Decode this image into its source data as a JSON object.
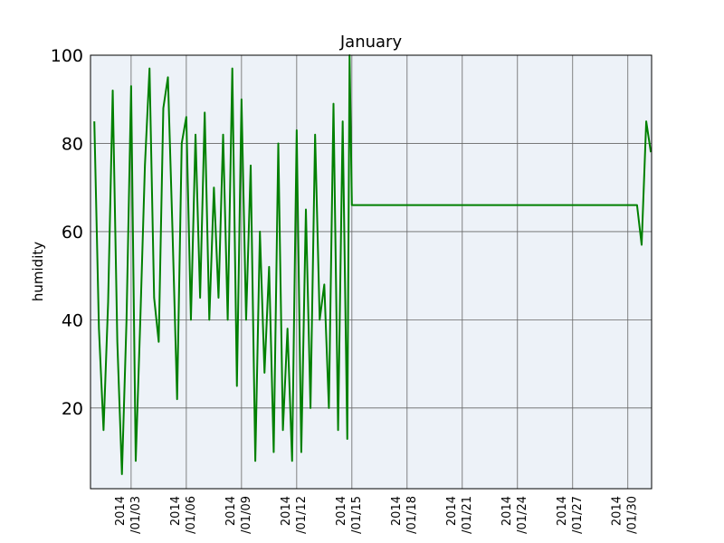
{
  "chart_data": {
    "type": "line",
    "title": "January",
    "y_label": "humidity",
    "x": [
      "2014-01-01T00:00",
      "2014-01-01T06:00",
      "2014-01-01T12:00",
      "2014-01-01T18:00",
      "2014-01-02T00:00",
      "2014-01-02T06:00",
      "2014-01-02T12:00",
      "2014-01-02T18:00",
      "2014-01-03T00:00",
      "2014-01-03T06:00",
      "2014-01-03T12:00",
      "2014-01-03T18:00",
      "2014-01-04T00:00",
      "2014-01-04T06:00",
      "2014-01-04T12:00",
      "2014-01-04T18:00",
      "2014-01-05T00:00",
      "2014-01-05T06:00",
      "2014-01-05T12:00",
      "2014-01-05T18:00",
      "2014-01-06T00:00",
      "2014-01-06T06:00",
      "2014-01-06T12:00",
      "2014-01-06T18:00",
      "2014-01-07T00:00",
      "2014-01-07T06:00",
      "2014-01-07T12:00",
      "2014-01-07T18:00",
      "2014-01-08T00:00",
      "2014-01-08T06:00",
      "2014-01-08T12:00",
      "2014-01-08T18:00",
      "2014-01-09T00:00",
      "2014-01-09T06:00",
      "2014-01-09T12:00",
      "2014-01-09T18:00",
      "2014-01-10T00:00",
      "2014-01-10T06:00",
      "2014-01-10T12:00",
      "2014-01-10T18:00",
      "2014-01-11T00:00",
      "2014-01-11T06:00",
      "2014-01-11T12:00",
      "2014-01-11T18:00",
      "2014-01-12T00:00",
      "2014-01-12T06:00",
      "2014-01-12T12:00",
      "2014-01-12T18:00",
      "2014-01-13T00:00",
      "2014-01-13T06:00",
      "2014-01-13T12:00",
      "2014-01-13T18:00",
      "2014-01-14T00:00",
      "2014-01-14T06:00",
      "2014-01-14T12:00",
      "2014-01-14T18:00",
      "2014-01-14T21:00",
      "2014-01-15T00:00",
      "2014-01-30T12:00",
      "2014-01-30T18:00",
      "2014-01-31T00:00",
      "2014-01-31T06:00"
    ],
    "series": [
      {
        "name": "humidity",
        "color": "#008000",
        "values": [
          85,
          38,
          15,
          44,
          92,
          35,
          5,
          40,
          93,
          8,
          40,
          75,
          97,
          45,
          35,
          88,
          95,
          60,
          22,
          80,
          86,
          40,
          82,
          45,
          87,
          40,
          70,
          45,
          82,
          40,
          97,
          25,
          90,
          40,
          75,
          8,
          60,
          28,
          52,
          10,
          80,
          15,
          38,
          8,
          83,
          10,
          65,
          20,
          82,
          40,
          48,
          20,
          89,
          15,
          85,
          13,
          100,
          66,
          66,
          57,
          85,
          78
        ]
      }
    ],
    "xlim": [
      "2013-12-31T19:00",
      "2014-01-31T07:00"
    ],
    "xticks": [
      {
        "value": "2014-01-03T00:00",
        "label": "2014\n/01/03"
      },
      {
        "value": "2014-01-06T00:00",
        "label": "2014\n/01/06"
      },
      {
        "value": "2014-01-09T00:00",
        "label": "2014\n/01/09"
      },
      {
        "value": "2014-01-12T00:00",
        "label": "2014\n/01/12"
      },
      {
        "value": "2014-01-15T00:00",
        "label": "2014\n/01/15"
      },
      {
        "value": "2014-01-18T00:00",
        "label": "2014\n/01/18"
      },
      {
        "value": "2014-01-21T00:00",
        "label": "2014\n/01/21"
      },
      {
        "value": "2014-01-24T00:00",
        "label": "2014\n/01/24"
      },
      {
        "value": "2014-01-27T00:00",
        "label": "2014\n/01/27"
      },
      {
        "value": "2014-01-30T00:00",
        "label": "2014\n/01/30"
      }
    ],
    "ylim": [
      1.7,
      100
    ],
    "yticks": [
      20,
      40,
      60,
      80,
      100
    ],
    "grid": true,
    "background": "#edf2f8"
  }
}
